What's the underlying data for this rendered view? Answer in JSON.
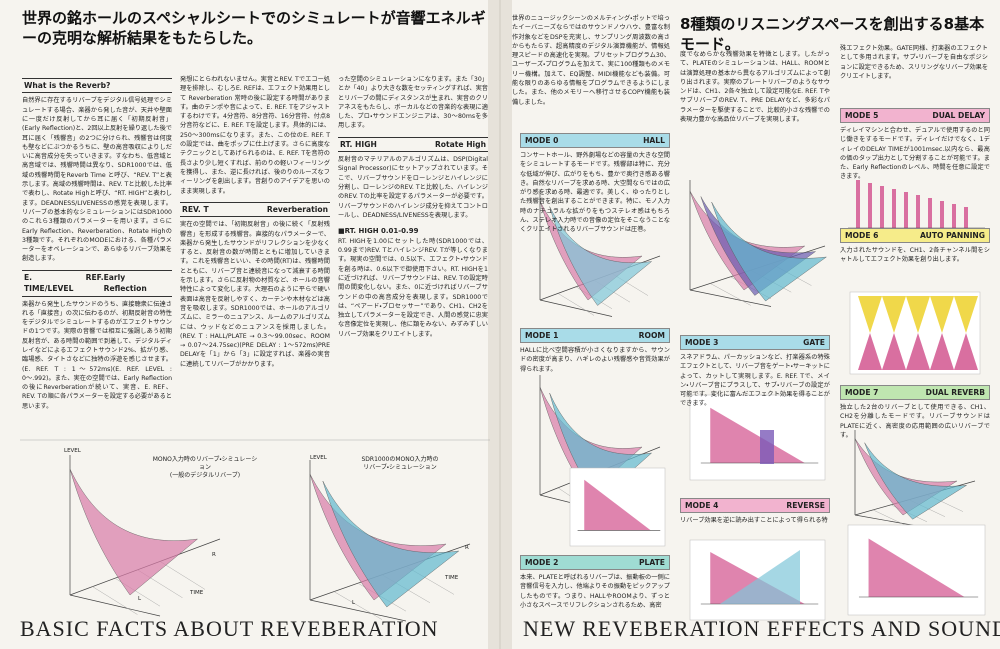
{
  "left": {
    "headline": "世界の銘ホールのスペシャルシートでのシミュレートが音響エネルギーの克明な解析結果をもたらした。",
    "columns": [
      [
        {
          "heading": "What is the Reverb?",
          "body": "自然界に存在するリバーブをデジタル信号処理でシミュレートする場合、楽器から発した音が、天井や壁面に一度だけ反射してから耳に届く「初期反射音」(Early Reflection)と、2回以上反射を繰り返した後で耳に届く「残響音」の2つに分けられ、残響音は何度も壁などにぶつかるうちに、壁の高音吸収によりしだいに高音成分を失っていきます。すなわち、低音域と高音域では、残響時間は異なり、SDR1000では、低域の残響時間をReverb Time と呼び、“REV. T”と表示します。高域の残響時間は、REV. Tと比較した比率で表わし、Rotate Highと呼び、“RT. HIGH”と表わします。DEADNESS/LIVENESSの感覚を表現します。リバーブの基本的なシミュレーションにはSDR1000のこれら3種類のパラメーターを用います。さらにEarly Reflection、Reverberation、Rotate Highの3種類です。それぞれのMODEにおける、各種パラメーターをオペレーションで、あらゆるリバーブ効果を創造します。"
        },
        {
          "heading": "E. REF. TIME/LEVEL",
          "subheading": "Early Reflection",
          "body": "楽器から発生したサウンドのうち、直接聴衆に伝達される「直接音」の次に伝わるのが、初期反射音の特性をデジタルでシミュレートするのがエフェクトサウンドの1つです。実際の音響では相互に強調しあう初期反射音が、ある時間の範囲で到着して、デジタルディレイなどによるエフェクトサウンド2%、拡がり感、臨場感、タイトさなどに独特の浮遊を感じさせます。(E. REF. T : 1〜572ms)(E. REF. LEVEL : 0〜.992)。また、実在の空間では、Early Reflectionの後にReverberationが続いて、実音、E. REF、REV. Tの順に各パラメーターを設定する必要があると思います。"
        }
      ],
      [
        {
          "body": "発想にとらわれないません。実音とREV. Tでエコー処理を排除し、むしろE. REFは、エフェクト効果用として Reverberation 常時の後に設定する時間があります。曲のテンポや音によって、E. REF. Tをアジャストするわけです。4分音符、8分音符、16分音符、付点8分音符などに、E. REF. Tを設定します。具体的には、250〜300msになります。また、この位のE. REF. Tの設定では、曲をポップに仕上げます。さらに高度なテクニックとしてあげられるのは、E. REF. Tを音符の長さより少し短くすれば、前のりの軽いフィーリングを獲得し、また、逆に長ければ、後のりのルーズなフィーリングを創出します。音創りのアイデアを思いのまま実現します。"
        },
        {
          "heading": "REV. T",
          "subheading": "Reverberation",
          "body": "実在の空間では、「初期反射音」の後に続く「反射残響音」を形成する残響音。直接的なパラメーターで、楽器から発生したサウンドがリフレクションを少なくすると、反射音の数が時間とともに増加していきます。これを残響音といい、その時間(RT)は、残響時間とともに、リバーブ音と連続音になって減衰する時間を示します。さらに反射物の材質など、ホールの音響特性によって変化します。大理石のように平らで硬い表面は高音を反射しやすく、カーテンや木材などは高音を吸収します。SDR1000では、ホールのアルゴリズムに、ミラーのニュアンス、ルームのアルゴリズムには、ウッドなどのニュアンスを採用しました。(REV. T : HALL/PLATE → 0.3〜99.00sec、ROOM → 0.07〜24.75sec)(PRE DELAY : 1〜572ms)PRE DELAYを「1」から「3」に設定すれば、楽器の実音に連続してリバーブがかかります。"
        }
      ],
      [
        {
          "body": "った空間のシミュレーションになります。また「30」とか「40」より大きな数をセッティングすれば、実音とリバーブの間にディスタンスが生まれ、実音のクリアネスをもたらし、ボーカルなどの音楽的な表現に適した、プロ・サウンドエンジニアは、30〜80msを多用します。"
        },
        {
          "heading": "RT. HIGH",
          "subheading": "Rotate High",
          "body": "反射音のマテリアルのアルゴリズムは、DSP(Digital Signal Processor)にセットアップされています。そこで、リバーブサウンドをローレンジとハイレンジに分割し、ローレンジのREV. Tと比較した、ハイレンジのREV. Tの比率を設定するパラメーターが必要です。リバーブサウンドのハイレンジ成分を抑えてコントロールし、DEADNESS/LIVENESSを表現します。"
        },
        {
          "heading": "■RT. HIGH 0.01-0.99",
          "body": "RT. HIGHを1.00にセットした時(SDR1000では、0.99まで)REV. TとハイレンジREV. Tが等しくなります。現実の空間では、0.5以下、エフェクト・サウンドを創る時は、0.6以下で御使用下さい。RT. HIGHを1に近づければ、リバーブサウンドは、REV. Tの設定時間の間変化しない。また、0に近づければリバーブサウンドの中の高音成分を表現します。SDR1000では、“ペアード・プロセッサー”であり、CH1、CH2を独立してパラメーターを設定でき、人間の感覚に忠実な音像定位を実現し、他に類をみない、みずみずしいリバーブ効果をクリエイトします。"
        }
      ]
    ],
    "figures": [
      {
        "caption": [
          "MONO入力時のリバーブ・シミュレーション",
          "(一般のデジタルリバーブ)"
        ],
        "labels": [
          "LEVEL",
          "TIME",
          "R",
          "L"
        ]
      },
      {
        "caption": [
          "SDR1000のMONO入力時の",
          "リバーブ・シミュレーション"
        ],
        "labels": [
          "LEVEL",
          "TIME",
          "R",
          "L"
        ]
      }
    ],
    "footer": "BASIC FACTS ABOUT REVEBERATION"
  },
  "right": {
    "intro": "世界のニュージックシーンのメルティング・ポットで培ったイーバニーズならではのサウンドノウハウ、豊富な制作対象などをDSPを充実し、サンプリング周波数の高さからもたらす、超高精度のデジタル演算機能が、情報処理スピードの高速化を実現。プリセットプログラム30、ユーザーズ・プログラムを加えて、実に100種類ものメモリー機構。加えて、EQ調整、MIDI機能なども装備。可能な限りのあらゆる情報をプログラムできるようにしました。また、他のメモリーへ移行させるCOPY機能も装備しました。",
    "headline": "8種類のリスニングスペースを創出する8基本モード。",
    "mode_2_continued": "度でなめらかな残響効果を特徴とします。したがって、PLATEのシミュレーションは、HALL、ROOMとは演算処理の基本から異なるアルゴリズムによって創り出されます。実際のプレートリバーブのようなサウンドは、CH1、2各々独立して設定可能なE. REF. TやサブリバーブのREV. T、PRE DELAYなど、多彩なパラメーターを駆使することで、比較的小さな残響での表現力豊かな高品位リバーブを実現します。",
    "mode_4_continued": "殊エフェクト効果。GATE同様、打楽器のエフェクトとして多用されます。サブ・リバーブを自由なポジションに設定できるため、スリリングなリバーブ効果をクリエイトします。",
    "modes": [
      {
        "label": "MODE 0",
        "name": "HALL",
        "text": "コンサートホール、野外劇場などの容量の大きな空間をシミュレートするモードです。残響部は特に、充分な低域が伸び、広がりをもち、豊かで奥行き感ある響き。自然なリバーブを求める時、大空間ならではの広がり感を求める時、最適です。美しく、ゆったりとした残響音を創出することができます。特に、モノ入力時のナチュラルな拡がりをもつステレオ感はもちろん、ステレオ入力時での音像の定位をそこなうことなくクリエイトされるリバーブサウンドは圧巻。"
      },
      {
        "label": "MODE 1",
        "name": "ROOM",
        "text": "HALLに比べ空間容積が小さくなりますから、サウンドの密度が高まり、ハギレのよい残響感や音質効果が得られます。"
      },
      {
        "label": "MODE 2",
        "name": "PLATE",
        "text": "本来、PLATEと呼ばれるリバーブは、振動板の一側に音響信号を入力し、他端よりその振動をピックアップしたものです。つまり、HALLやROOMより、ずっと小さなスペースでリフレクションされるため、高密"
      },
      {
        "label": "MODE 3",
        "name": "GATE",
        "text": "スネアドラム、パーカッションなど、打楽器系の特殊エフェクトとして、リバーブ音をゲート・サーキットによって、カットして実現します。E. REF. Tで、メイン・リバーブ音にプラスして、サブ・リバーブの設定が可能です。変化に富んだエフェクト効果を得ることができます。"
      },
      {
        "label": "MODE 4",
        "name": "REVERSE",
        "text": "リバーブ効果を逆に読み出すことによって得られる特"
      },
      {
        "label": "MODE 5",
        "name": "DUAL DELAY",
        "text": "ディレイマシンと合わせ、デュアルで使用するのと同じ働きをするモードです。ディレイだけでなく、1ディレイのDELAY TIMEが1001msec.以内なら、最高の価のタップ出力として分割することが可能です。また、Early Reflectionのレベル、時間を任意に設定できます。"
      },
      {
        "label": "MODE 6",
        "name": "AUTO PANNING",
        "text": "入力されたサウンドを、CH1、2各チャンネル間をシャトルしてエフェクト効果を創り出します。"
      },
      {
        "label": "MODE 7",
        "name": "DUAL REVERB",
        "text": "独立した2台のリバーブとして使用できる、CH1、CH2を分離したモードです。リバーブサウンドはPLATEに近く、高密度の応用範囲の広いリバーブです。"
      }
    ],
    "footer": "NEW REVEBERATION EFFECTS AND SOUNDS"
  }
}
